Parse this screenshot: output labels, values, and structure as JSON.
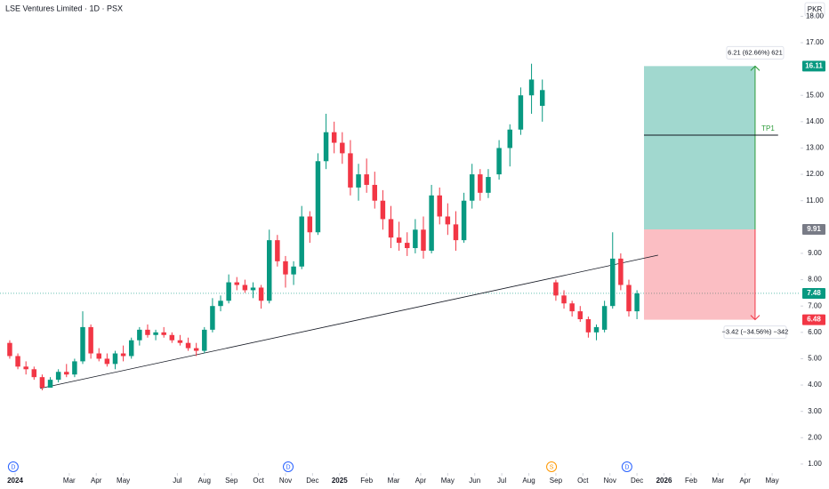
{
  "chart_data": {
    "type": "candlestick",
    "title": "LSE Ventures Limited · 1D · PSX",
    "currency": "PKR",
    "up_color": "#089981",
    "down_color": "#f23645",
    "xlim": [
      -0.56,
      29.05
    ],
    "ylim": [
      0.66,
      18.62
    ],
    "xticks": [
      {
        "value": 0,
        "label": "2024"
      },
      {
        "value": 2,
        "label": "Mar"
      },
      {
        "value": 3,
        "label": "Apr"
      },
      {
        "value": 4,
        "label": "May"
      },
      {
        "value": 6,
        "label": "Jul"
      },
      {
        "value": 7,
        "label": "Aug"
      },
      {
        "value": 8,
        "label": "Sep"
      },
      {
        "value": 9,
        "label": "Oct"
      },
      {
        "value": 10,
        "label": "Nov"
      },
      {
        "value": 11,
        "label": "Dec"
      },
      {
        "value": 12,
        "label": "2025"
      },
      {
        "value": 13,
        "label": "Feb"
      },
      {
        "value": 14,
        "label": "Mar"
      },
      {
        "value": 15,
        "label": "Apr"
      },
      {
        "value": 16,
        "label": "May"
      },
      {
        "value": 17,
        "label": "Jun"
      },
      {
        "value": 18,
        "label": "Jul"
      },
      {
        "value": 19,
        "label": "Aug"
      },
      {
        "value": 20,
        "label": "Sep"
      },
      {
        "value": 21,
        "label": "Oct"
      },
      {
        "value": 22,
        "label": "Nov"
      },
      {
        "value": 23,
        "label": "Dec"
      },
      {
        "value": 24,
        "label": "2026"
      },
      {
        "value": 25,
        "label": "Feb"
      },
      {
        "value": 26,
        "label": "Mar"
      },
      {
        "value": 27,
        "label": "Apr"
      },
      {
        "value": 28,
        "label": "May"
      }
    ],
    "yticks": [
      {
        "value": 1,
        "label": "1.00"
      },
      {
        "value": 2,
        "label": "2.00"
      },
      {
        "value": 3,
        "label": "3.00"
      },
      {
        "value": 4,
        "label": "4.00"
      },
      {
        "value": 5,
        "label": "5.00"
      },
      {
        "value": 6,
        "label": "6.00"
      },
      {
        "value": 7,
        "label": "7.00"
      },
      {
        "value": 8,
        "label": "8.00"
      },
      {
        "value": 9,
        "label": "9.00"
      },
      {
        "value": 11,
        "label": "11.00"
      },
      {
        "value": 12,
        "label": "12.00"
      },
      {
        "value": 13,
        "label": "13.00"
      },
      {
        "value": 14,
        "label": "14.00"
      },
      {
        "value": 15,
        "label": "15.00"
      },
      {
        "value": 17,
        "label": "17.00"
      },
      {
        "value": 18,
        "label": "18.00"
      }
    ],
    "x": [
      -0.2,
      0.1,
      0.4,
      0.7,
      1.0,
      1.3,
      1.6,
      1.9,
      2.2,
      2.5,
      2.8,
      3.1,
      3.4,
      3.7,
      4.0,
      4.3,
      4.6,
      4.9,
      5.2,
      5.5,
      5.8,
      6.1,
      6.4,
      6.7,
      7.0,
      7.3,
      7.6,
      7.9,
      8.2,
      8.5,
      8.8,
      9.1,
      9.4,
      9.7,
      10.0,
      10.3,
      10.6,
      10.9,
      11.2,
      11.5,
      11.8,
      12.1,
      12.4,
      12.7,
      13.0,
      13.3,
      13.6,
      13.9,
      14.2,
      14.5,
      14.8,
      15.1,
      15.4,
      15.7,
      16.0,
      16.3,
      16.6,
      16.9,
      17.2,
      17.5,
      17.9,
      18.3,
      18.7,
      19.1,
      19.5,
      20.0,
      20.3,
      20.6,
      20.9,
      21.2,
      21.5,
      21.8,
      22.1,
      22.4,
      22.7,
      23.0
    ],
    "open": [
      5.6,
      5.1,
      4.7,
      4.6,
      4.3,
      3.9,
      4.2,
      4.5,
      4.4,
      4.9,
      6.2,
      5.2,
      5.0,
      4.8,
      5.2,
      5.1,
      5.7,
      6.1,
      5.9,
      6.0,
      5.9,
      5.7,
      5.6,
      5.4,
      5.3,
      6.1,
      7.0,
      7.2,
      7.9,
      7.8,
      7.6,
      7.7,
      7.2,
      9.5,
      8.7,
      8.2,
      8.5,
      10.4,
      9.8,
      12.5,
      13.6,
      13.2,
      12.8,
      11.5,
      12.0,
      11.6,
      11.0,
      10.3,
      9.6,
      9.4,
      9.2,
      9.9,
      9.1,
      11.2,
      10.4,
      10.1,
      9.5,
      11.0,
      12.0,
      11.3,
      12.0,
      13.0,
      13.7,
      15.0,
      14.6,
      7.9,
      7.4,
      7.1,
      6.8,
      6.5,
      6.0,
      6.1,
      7.0,
      8.8,
      7.8,
      6.8
    ],
    "high": [
      5.7,
      5.2,
      4.9,
      4.7,
      4.4,
      4.3,
      4.6,
      4.8,
      5.0,
      6.8,
      6.3,
      5.4,
      5.2,
      5.3,
      5.5,
      5.8,
      6.2,
      6.3,
      6.1,
      6.2,
      6.0,
      5.9,
      5.8,
      5.6,
      6.2,
      7.3,
      7.4,
      8.2,
      8.1,
      8.0,
      7.9,
      7.8,
      9.9,
      9.7,
      8.9,
      8.7,
      10.8,
      10.6,
      12.8,
      14.3,
      14.0,
      13.6,
      13.3,
      12.4,
      12.6,
      12.1,
      11.4,
      10.8,
      10.2,
      9.8,
      10.3,
      10.4,
      11.6,
      11.5,
      10.9,
      10.6,
      11.3,
      12.4,
      12.2,
      12.2,
      13.3,
      13.9,
      15.3,
      16.2,
      15.6,
      8.0,
      7.6,
      7.2,
      7.0,
      6.6,
      6.3,
      7.2,
      9.8,
      9.0,
      8.0,
      7.6
    ],
    "low": [
      5.0,
      4.6,
      4.4,
      4.2,
      3.8,
      3.9,
      4.1,
      4.3,
      4.3,
      4.8,
      5.0,
      4.9,
      4.7,
      4.6,
      4.9,
      5.0,
      5.5,
      5.8,
      5.7,
      5.8,
      5.6,
      5.5,
      5.3,
      5.1,
      5.2,
      6.0,
      6.8,
      7.1,
      7.6,
      7.5,
      7.3,
      6.9,
      7.1,
      8.5,
      7.7,
      7.8,
      8.4,
      9.4,
      9.7,
      12.2,
      12.8,
      12.4,
      11.2,
      11.0,
      11.3,
      10.7,
      9.9,
      9.2,
      9.1,
      8.9,
      9.0,
      8.8,
      9.0,
      10.1,
      9.7,
      9.1,
      9.4,
      10.7,
      11.0,
      11.1,
      11.8,
      12.3,
      13.5,
      14.3,
      14.0,
      7.2,
      6.9,
      6.6,
      6.4,
      5.8,
      5.7,
      6.0,
      6.9,
      7.6,
      6.6,
      6.5
    ],
    "close": [
      5.1,
      4.7,
      4.6,
      4.3,
      3.9,
      4.2,
      4.5,
      4.4,
      4.9,
      6.2,
      5.2,
      5.0,
      4.8,
      5.2,
      5.1,
      5.7,
      6.1,
      5.9,
      6.0,
      5.9,
      5.7,
      5.6,
      5.4,
      5.3,
      6.1,
      7.0,
      7.2,
      7.9,
      7.8,
      7.6,
      7.7,
      7.2,
      9.5,
      8.7,
      8.2,
      8.5,
      10.4,
      9.8,
      12.5,
      13.6,
      13.2,
      12.8,
      11.5,
      12.0,
      11.6,
      11.0,
      10.3,
      9.6,
      9.4,
      9.2,
      9.9,
      9.1,
      11.2,
      10.4,
      10.1,
      9.5,
      11.0,
      12.0,
      11.3,
      11.9,
      13.0,
      13.7,
      15.0,
      15.6,
      15.2,
      7.4,
      7.1,
      6.8,
      6.5,
      6.0,
      6.2,
      7.0,
      8.8,
      7.8,
      6.8,
      7.48
    ],
    "last_price": 7.48,
    "trendline": {
      "x": [
        0.92,
        23.78
      ],
      "y": [
        3.87,
        8.93
      ]
    },
    "events": [
      {
        "x": -0.07,
        "label": "D",
        "color": "#2962ff"
      },
      {
        "x": 10.1,
        "label": "D",
        "color": "#2962ff"
      },
      {
        "x": 19.84,
        "label": "S",
        "color": "#ff9800"
      },
      {
        "x": 22.63,
        "label": "D",
        "color": "#2962ff"
      }
    ],
    "position": {
      "x": [
        23.26,
        27.37
      ],
      "entry": 9.91,
      "target": 16.11,
      "stop": 6.48,
      "target_label": "6.21 (62.66%) 621",
      "stop_label": "−3.42 (−34.56%) −342",
      "tp1": {
        "label": "TP1",
        "value": 13.49,
        "x": [
          23.26,
          28.22
        ]
      }
    }
  }
}
